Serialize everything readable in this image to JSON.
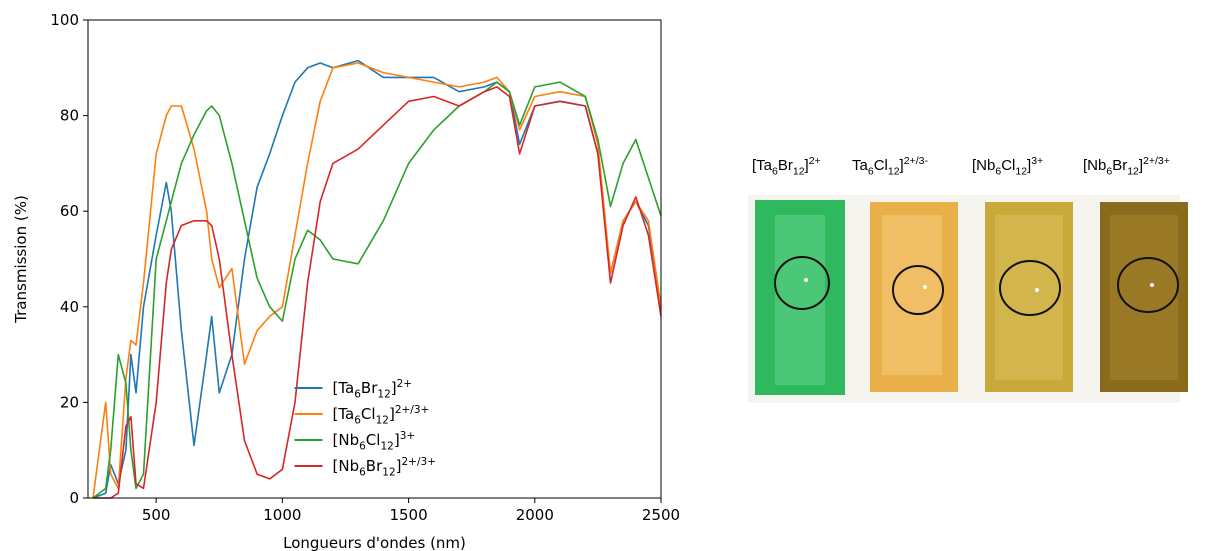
{
  "chart_data": {
    "type": "line",
    "xlabel": "Longueurs d'ondes (nm)",
    "ylabel": "Transmission (%)",
    "x": [
      250,
      300,
      320,
      350,
      380,
      400,
      420,
      450,
      500,
      540,
      560,
      600,
      650,
      700,
      720,
      750,
      800,
      850,
      900,
      950,
      1000,
      1050,
      1100,
      1150,
      1200,
      1300,
      1400,
      1500,
      1600,
      1700,
      1800,
      1850,
      1900,
      1940,
      2000,
      2100,
      2200,
      2250,
      2300,
      2350,
      2400,
      2450,
      2500
    ],
    "series": [
      {
        "name": "[Ta6Br12]2+",
        "color": "#1f77b4",
        "values": [
          0,
          1,
          7,
          3,
          10,
          30,
          22,
          40,
          55,
          66,
          60,
          35,
          11,
          30,
          38,
          22,
          30,
          50,
          65,
          72,
          80,
          87,
          90,
          91,
          90,
          91.5,
          88,
          88,
          88,
          85,
          86,
          87,
          85,
          74,
          82,
          83,
          82,
          72,
          47,
          58,
          62,
          57,
          40
        ]
      },
      {
        "name": "[Ta6Cl12]2+/3+",
        "color": "#ff7f0e",
        "values": [
          0,
          20,
          5,
          2,
          25,
          33,
          32,
          45,
          72,
          80,
          82,
          82,
          73,
          60,
          50,
          44,
          48,
          28,
          35,
          38,
          40,
          55,
          70,
          83,
          90,
          91,
          89,
          88,
          87,
          86,
          87,
          88,
          85,
          77,
          84,
          85,
          84,
          74,
          47,
          58,
          62,
          58,
          40
        ]
      },
      {
        "name": "[Nb6Cl12]3+",
        "color": "#2ca02c",
        "values": [
          0,
          2,
          10,
          30,
          24,
          10,
          2,
          5,
          50,
          58,
          62,
          70,
          76,
          81,
          82,
          80,
          70,
          58,
          46,
          40,
          37,
          50,
          56,
          54,
          50,
          49,
          58,
          70,
          77,
          82,
          85,
          87,
          85,
          78,
          86,
          87,
          84,
          75,
          61,
          70,
          75,
          67,
          59
        ]
      },
      {
        "name": "[Nb6Br12]2+/3+",
        "color": "#d62728",
        "values": [
          0,
          0,
          0,
          1,
          15,
          17,
          3,
          2,
          20,
          45,
          52,
          57,
          58,
          58,
          57,
          50,
          30,
          12,
          5,
          4,
          6,
          20,
          45,
          62,
          70,
          73,
          78,
          83,
          84,
          82,
          85,
          86,
          84,
          72,
          82,
          83,
          82,
          72,
          45,
          57,
          63,
          55,
          38
        ]
      }
    ],
    "xlim": [
      230,
      2500
    ],
    "xticks": [
      500,
      1000,
      1500,
      2000,
      2500
    ],
    "ylim": [
      0,
      100
    ],
    "yticks": [
      0,
      20,
      40,
      60,
      80,
      100
    ],
    "grid": false,
    "legend": "lower center"
  },
  "photo": {
    "labels": [
      "[Ta6Br12]2+",
      "Ta6Cl12]2+/3-",
      "[Nb6Cl12]3+",
      "[Nb6Br12]2+/3+"
    ]
  }
}
